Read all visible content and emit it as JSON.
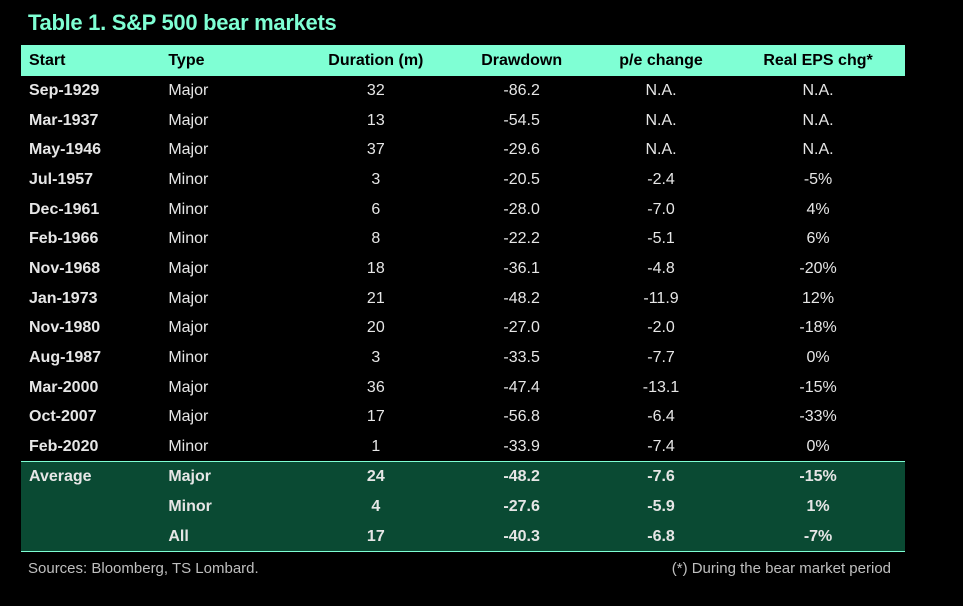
{
  "title": "Table 1. S&P 500 bear markets",
  "colors": {
    "accent": "#7fffd4",
    "average_bg": "#0a4a33",
    "background": "#000000"
  },
  "chart_data": {
    "type": "table",
    "title": "Table 1. S&P 500 bear markets",
    "columns": [
      "Start",
      "Type",
      "Duration (m)",
      "Drawdown",
      "p/e change",
      "Real EPS chg*"
    ],
    "rows": [
      [
        "Sep-1929",
        "Major",
        "32",
        "-86.2",
        "N.A.",
        "N.A."
      ],
      [
        "Mar-1937",
        "Major",
        "13",
        "-54.5",
        "N.A.",
        "N.A."
      ],
      [
        "May-1946",
        "Major",
        "37",
        "-29.6",
        "N.A.",
        "N.A."
      ],
      [
        "Jul-1957",
        "Minor",
        "3",
        "-20.5",
        "-2.4",
        "-5%"
      ],
      [
        "Dec-1961",
        "Minor",
        "6",
        "-28.0",
        "-7.0",
        "4%"
      ],
      [
        "Feb-1966",
        "Minor",
        "8",
        "-22.2",
        "-5.1",
        "6%"
      ],
      [
        "Nov-1968",
        "Major",
        "18",
        "-36.1",
        "-4.8",
        "-20%"
      ],
      [
        "Jan-1973",
        "Major",
        "21",
        "-48.2",
        "-11.9",
        "12%"
      ],
      [
        "Nov-1980",
        "Major",
        "20",
        "-27.0",
        "-2.0",
        "-18%"
      ],
      [
        "Aug-1987",
        "Minor",
        "3",
        "-33.5",
        "-7.7",
        "0%"
      ],
      [
        "Mar-2000",
        "Major",
        "36",
        "-47.4",
        "-13.1",
        "-15%"
      ],
      [
        "Oct-2007",
        "Major",
        "17",
        "-56.8",
        "-6.4",
        "-33%"
      ],
      [
        "Feb-2020",
        "Minor",
        "1",
        "-33.9",
        "-7.4",
        "0%"
      ]
    ],
    "average_rows": [
      [
        "Average",
        "Major",
        "24",
        "-48.2",
        "-7.6",
        "-15%"
      ],
      [
        "",
        "Minor",
        "4",
        "-27.6",
        "-5.9",
        "1%"
      ],
      [
        "",
        "All",
        "17",
        "-40.3",
        "-6.8",
        "-7%"
      ]
    ]
  },
  "footer": {
    "sources": "Sources: Bloomberg, TS Lombard.",
    "note": "(*) During the bear market period"
  }
}
